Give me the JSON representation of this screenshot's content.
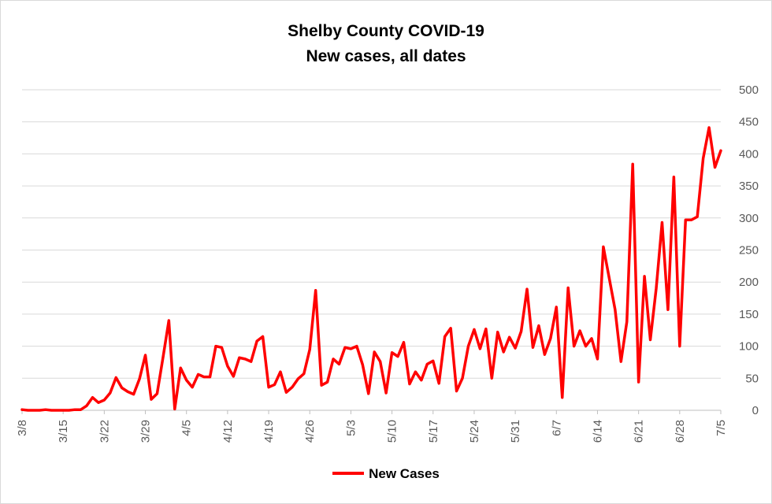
{
  "chart_data": {
    "type": "line",
    "title": "Shelby County COVID-19",
    "subtitle": "New cases, all dates",
    "xlabel": "",
    "ylabel": "",
    "ylim": [
      0,
      500
    ],
    "yticks": [
      0,
      50,
      100,
      150,
      200,
      250,
      300,
      350,
      400,
      450,
      500
    ],
    "y_axis_position": "right",
    "grid": true,
    "legend_position": "bottom",
    "xtick_labels": [
      "3/8",
      "3/15",
      "3/22",
      "3/29",
      "4/5",
      "4/12",
      "4/19",
      "4/26",
      "5/3",
      "5/10",
      "5/17",
      "5/24",
      "5/31",
      "6/7",
      "6/14",
      "6/21",
      "6/28",
      "7/5"
    ],
    "series": [
      {
        "name": "New Cases",
        "color": "#ff0000",
        "start": "3/8",
        "values": [
          1,
          0,
          0,
          0,
          1,
          0,
          0,
          0,
          0,
          1,
          1,
          7,
          20,
          12,
          16,
          27,
          51,
          35,
          29,
          25,
          49,
          86,
          17,
          26,
          82,
          140,
          2,
          66,
          47,
          36,
          56,
          52,
          52,
          100,
          98,
          69,
          53,
          82,
          80,
          76,
          108,
          115,
          36,
          40,
          60,
          28,
          36,
          49,
          57,
          95,
          187,
          39,
          44,
          80,
          72,
          98,
          96,
          100,
          71,
          26,
          91,
          76,
          27,
          90,
          84,
          106,
          41,
          60,
          47,
          72,
          77,
          42,
          115,
          128,
          30,
          50,
          100,
          126,
          96,
          127,
          50,
          122,
          91,
          114,
          97,
          123,
          189,
          98,
          132,
          87,
          112,
          161,
          20,
          191,
          100,
          124,
          100,
          112,
          80,
          255,
          206,
          157,
          76,
          138,
          384,
          44,
          209,
          110,
          190,
          293,
          157,
          364,
          100,
          297,
          297,
          302,
          393,
          441,
          379,
          405
        ]
      }
    ]
  }
}
